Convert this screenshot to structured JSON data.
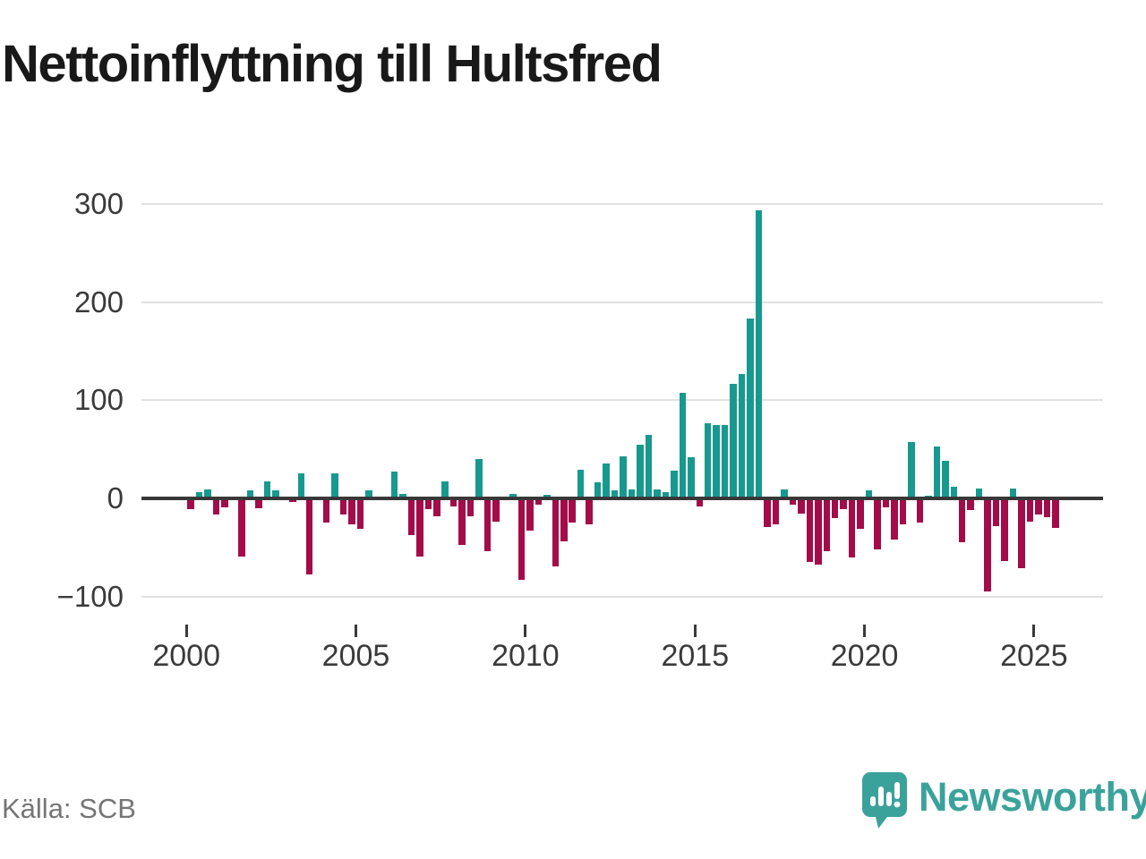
{
  "title": "Nettoinflyttning till Hultsfred",
  "source": "Källa: SCB",
  "logo": {
    "text": "Newsworthy"
  },
  "chart_data": {
    "type": "bar",
    "title": "Nettoinflyttning till Hultsfred",
    "frequency": "quarterly",
    "categories": [
      "2000 Q1",
      "2000 Q2",
      "2000 Q3",
      "2000 Q4",
      "2001 Q1",
      "2001 Q2",
      "2001 Q3",
      "2001 Q4",
      "2002 Q1",
      "2002 Q2",
      "2002 Q3",
      "2002 Q4",
      "2003 Q1",
      "2003 Q2",
      "2003 Q3",
      "2003 Q4",
      "2004 Q1",
      "2004 Q2",
      "2004 Q3",
      "2004 Q4",
      "2005 Q1",
      "2005 Q2",
      "2005 Q3",
      "2005 Q4",
      "2006 Q1",
      "2006 Q2",
      "2006 Q3",
      "2006 Q4",
      "2007 Q1",
      "2007 Q2",
      "2007 Q3",
      "2007 Q4",
      "2008 Q1",
      "2008 Q2",
      "2008 Q3",
      "2008 Q4",
      "2009 Q1",
      "2009 Q2",
      "2009 Q3",
      "2009 Q4",
      "2010 Q1",
      "2010 Q2",
      "2010 Q3",
      "2010 Q4",
      "2011 Q1",
      "2011 Q2",
      "2011 Q3",
      "2011 Q4",
      "2012 Q1",
      "2012 Q2",
      "2012 Q3",
      "2012 Q4",
      "2013 Q1",
      "2013 Q2",
      "2013 Q3",
      "2013 Q4",
      "2014 Q1",
      "2014 Q2",
      "2014 Q3",
      "2014 Q4",
      "2015 Q1",
      "2015 Q2",
      "2015 Q3",
      "2015 Q4",
      "2016 Q1",
      "2016 Q2",
      "2016 Q3",
      "2016 Q4",
      "2017 Q1",
      "2017 Q2",
      "2017 Q3",
      "2017 Q4",
      "2018 Q1",
      "2018 Q2",
      "2018 Q3",
      "2018 Q4",
      "2019 Q1",
      "2019 Q2",
      "2019 Q3",
      "2019 Q4",
      "2020 Q1",
      "2020 Q2",
      "2020 Q3",
      "2020 Q4",
      "2021 Q1",
      "2021 Q2",
      "2021 Q3",
      "2021 Q4",
      "2022 Q1",
      "2022 Q2",
      "2022 Q3",
      "2022 Q4",
      "2023 Q1",
      "2023 Q2",
      "2023 Q3",
      "2023 Q4",
      "2024 Q1",
      "2024 Q2",
      "2024 Q3",
      "2024 Q4",
      "2025 Q1",
      "2025 Q2",
      "2025 Q3"
    ],
    "values": [
      -11,
      6,
      9,
      -16,
      -9,
      0,
      -59,
      8,
      -10,
      17,
      8,
      0,
      -4,
      26,
      -77,
      0,
      -25,
      26,
      -16,
      -26,
      -31,
      8,
      -2,
      0,
      27,
      5,
      -37,
      -59,
      -11,
      -18,
      17,
      -8,
      -47,
      -18,
      40,
      -54,
      -24,
      0,
      5,
      -83,
      -33,
      -6,
      4,
      -69,
      -44,
      -25,
      29,
      -26,
      16,
      36,
      8,
      43,
      9,
      55,
      65,
      9,
      6,
      28,
      108,
      42,
      -8,
      77,
      75,
      75,
      117,
      127,
      183,
      293,
      -29,
      -26,
      9,
      -6,
      -15,
      -65,
      -67,
      -54,
      -20,
      -11,
      -60,
      -31,
      8,
      -52,
      -9,
      -42,
      -26,
      57,
      -25,
      3,
      53,
      38,
      12,
      -45,
      -12,
      10,
      -95,
      -28,
      -64,
      10,
      -71,
      -24,
      -16,
      -19,
      -30
    ],
    "ylim": [
      -100,
      300
    ],
    "yticks": [
      300,
      200,
      100,
      0,
      -100
    ],
    "xticks": [
      2000,
      2005,
      2010,
      2015,
      2020,
      2025
    ],
    "grid": true,
    "legend": "none",
    "colors": {
      "positive": "#17998f",
      "negative": "#a30b49"
    }
  }
}
